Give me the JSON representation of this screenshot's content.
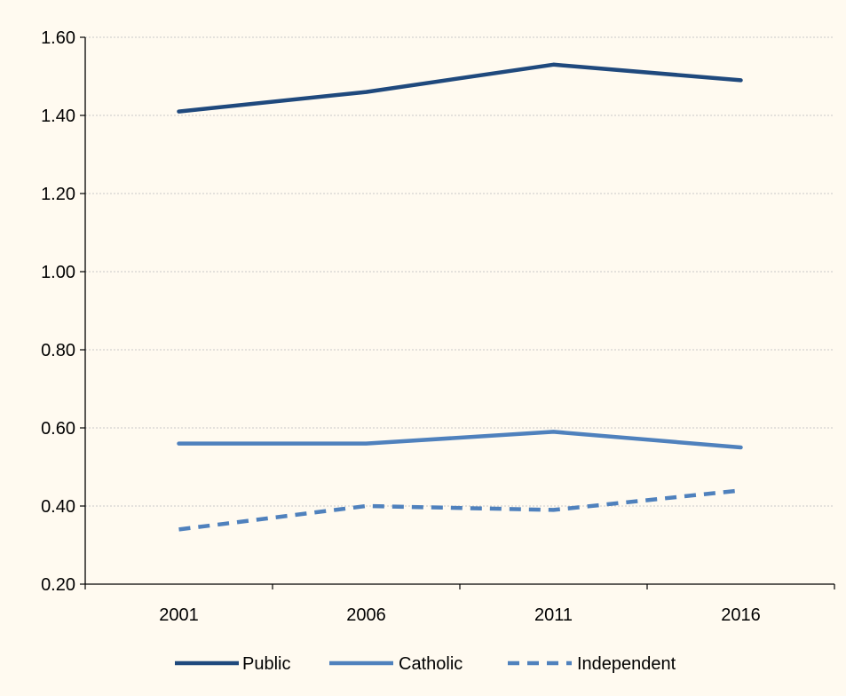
{
  "chart_data": {
    "type": "line",
    "categories": [
      "2001",
      "2006",
      "2011",
      "2016"
    ],
    "series": [
      {
        "name": "Public",
        "values": [
          1.41,
          1.46,
          1.53,
          1.49
        ],
        "color": "#1f497d",
        "dashed": false
      },
      {
        "name": "Catholic",
        "values": [
          0.56,
          0.56,
          0.59,
          0.55
        ],
        "color": "#4f81bd",
        "dashed": false
      },
      {
        "name": "Independent",
        "values": [
          0.34,
          0.4,
          0.39,
          0.44
        ],
        "color": "#4f81bd",
        "dashed": true
      }
    ],
    "y_ticks": [
      "0.20",
      "0.40",
      "0.60",
      "0.80",
      "1.00",
      "1.20",
      "1.40",
      "1.60"
    ],
    "ylim": [
      0.2,
      1.6
    ],
    "grid": true,
    "legend_position": "bottom",
    "background": "#fffaf0"
  }
}
